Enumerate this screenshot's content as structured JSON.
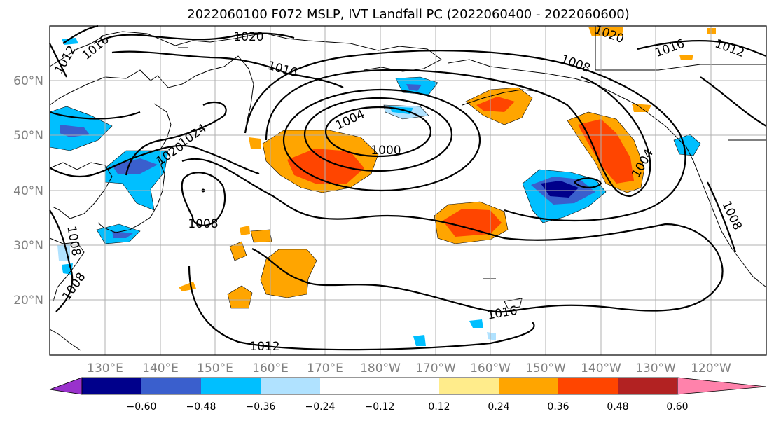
{
  "title": "2022060100 F072 MSLP, IVT Landfall PC (2022060400 - 2022060600)",
  "map": {
    "lon_labels": [
      "130°E",
      "140°E",
      "150°E",
      "160°E",
      "170°E",
      "180°W",
      "170°W",
      "160°W",
      "150°W",
      "140°W",
      "130°W",
      "120°W"
    ],
    "lat_labels": [
      "60°N",
      "50°N",
      "40°N",
      "30°N",
      "20°N"
    ],
    "contour_labels": [
      "1012",
      "1016",
      "1020",
      "1016",
      "1008",
      "1004",
      "1000",
      "1024",
      "1020",
      "1008",
      "1004",
      "1008",
      "1016",
      "1012",
      "1020",
      "1016",
      "1012",
      "1008",
      "1008"
    ]
  },
  "colorbar": {
    "colors": [
      "#9932cc",
      "#00008b",
      "#3a5fcd",
      "#00bfff",
      "#b0e2ff",
      "#ffffff",
      "#ffffff",
      "#ffec8b",
      "#ffa500",
      "#ff4500",
      "#b22222",
      "#ff82ab"
    ],
    "tick_labels": [
      "−0.60",
      "−0.48",
      "−0.36",
      "−0.24",
      "−0.12",
      "0.12",
      "0.24",
      "0.36",
      "0.48",
      "0.60"
    ]
  }
}
